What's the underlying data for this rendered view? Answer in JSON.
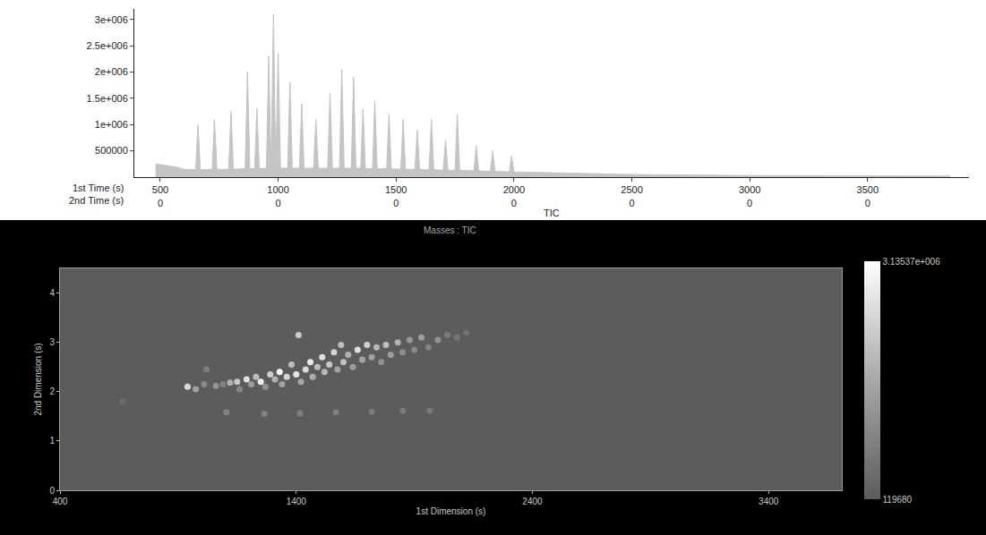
{
  "chart_data": [
    {
      "type": "line",
      "x_label": "TIC",
      "x_row_labels": [
        "1st Time (s)",
        "2nd Time (s)"
      ],
      "color": "#c4c4c4",
      "x": [
        480,
        560,
        600,
        650,
        660,
        670,
        720,
        730,
        740,
        790,
        800,
        810,
        860,
        870,
        880,
        900,
        910,
        920,
        950,
        960,
        970,
        980,
        990,
        1000,
        1010,
        1040,
        1050,
        1060,
        1090,
        1100,
        1110,
        1150,
        1160,
        1170,
        1210,
        1220,
        1230,
        1260,
        1270,
        1280,
        1310,
        1320,
        1330,
        1350,
        1360,
        1370,
        1400,
        1410,
        1420,
        1460,
        1470,
        1480,
        1520,
        1530,
        1540,
        1580,
        1590,
        1600,
        1640,
        1650,
        1660,
        1700,
        1710,
        1720,
        1750,
        1760,
        1770,
        1830,
        1840,
        1850,
        1900,
        1910,
        1920,
        1980,
        1990,
        2000,
        2100,
        2300,
        2500,
        3000,
        3500,
        3850
      ],
      "values": [
        250000,
        200000,
        150000,
        140000,
        1000000,
        140000,
        150000,
        1100000,
        150000,
        150000,
        1250000,
        150000,
        160000,
        2000000,
        160000,
        160000,
        1300000,
        160000,
        170000,
        2300000,
        170000,
        3100000,
        170000,
        2350000,
        170000,
        170000,
        1800000,
        170000,
        170000,
        1400000,
        170000,
        170000,
        1100000,
        170000,
        170000,
        1600000,
        170000,
        170000,
        2050000,
        170000,
        170000,
        1900000,
        170000,
        170000,
        1300000,
        160000,
        160000,
        1450000,
        160000,
        160000,
        1200000,
        160000,
        150000,
        1100000,
        150000,
        150000,
        900000,
        150000,
        140000,
        1100000,
        140000,
        130000,
        700000,
        130000,
        130000,
        1200000,
        130000,
        120000,
        600000,
        120000,
        110000,
        500000,
        110000,
        100000,
        400000,
        100000,
        90000,
        70000,
        50000,
        30000,
        20000,
        20000
      ],
      "xlim": [
        390,
        3930
      ],
      "xticks": [
        500,
        1000,
        1500,
        2000,
        2500,
        3000,
        3500
      ],
      "second_row_ticks": [
        0,
        0,
        0,
        0,
        0,
        0,
        0
      ],
      "ylim": [
        0,
        3200000
      ],
      "yticks": [
        500000,
        {
          "value": 1000000,
          "label": "1e+006"
        },
        {
          "value": 1500000,
          "label": "1.5e+006"
        },
        {
          "value": 2000000,
          "label": "2e+006"
        },
        {
          "value": 2500000,
          "label": "2.5e+006"
        },
        {
          "value": 3000000,
          "label": "3e+006"
        }
      ],
      "grid": false
    },
    {
      "type": "scatter",
      "title": "Masses : TIC",
      "x_label": "1st Dimension (s)",
      "y_label": "2nd Dimension (s)",
      "x": [
        665,
        940,
        975,
        1010,
        1020,
        1060,
        1090,
        1120,
        1150,
        1160,
        1190,
        1210,
        1230,
        1250,
        1270,
        1290,
        1310,
        1330,
        1340,
        1360,
        1380,
        1400,
        1410,
        1420,
        1440,
        1460,
        1470,
        1490,
        1510,
        1520,
        1540,
        1560,
        1575,
        1590,
        1600,
        1620,
        1640,
        1660,
        1680,
        1700,
        1720,
        1740,
        1760,
        1780,
        1800,
        1830,
        1850,
        1880,
        1900,
        1930,
        1960,
        2000,
        2040,
        2080,
        2120,
        1105,
        1265,
        1416,
        1568,
        1720,
        1852,
        1966
      ],
      "y": [
        1.8,
        2.1,
        2.05,
        2.15,
        2.45,
        2.12,
        2.15,
        2.18,
        2.2,
        2.05,
        2.25,
        2.15,
        2.3,
        2.2,
        2.1,
        2.35,
        2.25,
        2.4,
        2.15,
        2.3,
        2.55,
        2.35,
        3.15,
        2.2,
        2.45,
        2.6,
        2.3,
        2.5,
        2.7,
        2.4,
        2.55,
        2.8,
        2.45,
        2.95,
        2.6,
        2.75,
        2.5,
        2.85,
        2.65,
        2.95,
        2.7,
        2.9,
        2.6,
        2.95,
        2.75,
        3.0,
        2.8,
        3.05,
        2.85,
        3.1,
        2.9,
        3.05,
        3.15,
        3.1,
        3.2,
        1.58,
        1.55,
        1.56,
        1.58,
        1.59,
        1.61,
        1.62
      ],
      "intensity": [
        400000,
        2500000,
        1500000,
        1000000,
        800000,
        1200000,
        900000,
        1800000,
        2200000,
        1000000,
        2600000,
        1400000,
        2000000,
        2900000,
        1200000,
        2300000,
        1800000,
        3100000,
        1500000,
        2400000,
        2000000,
        2700000,
        2200000,
        1600000,
        2500000,
        2800000,
        1700000,
        2000000,
        2600000,
        1900000,
        2200000,
        2400000,
        1500000,
        2000000,
        2100000,
        1800000,
        1400000,
        2600000,
        1600000,
        2300000,
        1500000,
        1900000,
        1200000,
        2000000,
        1400000,
        1800000,
        1100000,
        1300000,
        1000000,
        1400000,
        900000,
        1200000,
        700000,
        600000,
        500000,
        900000,
        850000,
        800000,
        800000,
        750000,
        700000,
        700000
      ],
      "xlim": [
        400,
        3710
      ],
      "xticks": [
        400,
        1400,
        2400,
        3400
      ],
      "ylim": [
        0,
        4.5
      ],
      "yticks": [
        0,
        1,
        2,
        3,
        4
      ],
      "colorbar_range": [
        119680,
        3135370
      ],
      "colorbar_ticks": [
        119680,
        {
          "value": 3135370,
          "label": "3.13537e+006"
        }
      ],
      "grid": false
    }
  ]
}
